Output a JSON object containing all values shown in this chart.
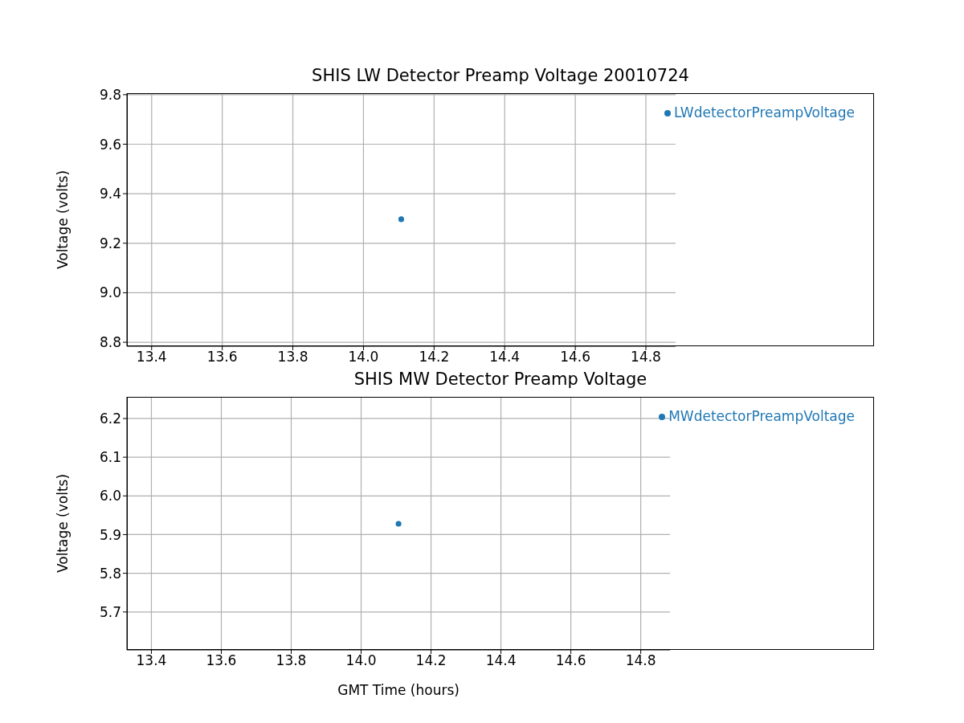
{
  "chart_data": [
    {
      "type": "scatter",
      "title": "SHIS LW Detector Preamp Voltage 20010724",
      "ylabel": "Voltage (volts)",
      "x": [
        14.107
      ],
      "series": [
        {
          "name": "LWdetectorPreampVoltage",
          "color": "#1f77b4",
          "values": [
            9.297
          ]
        }
      ],
      "xlim": [
        13.33,
        14.884
      ],
      "xticks": [
        13.4,
        13.6,
        13.8,
        {
          "value": 14,
          "label": "14.0"
        },
        14.2,
        14.4,
        14.6,
        14.8
      ],
      "ylim": [
        8.784,
        9.806
      ],
      "yticks": [
        8.8,
        {
          "value": 9,
          "label": "9.0"
        },
        9.2,
        9.4,
        9.6,
        9.8
      ],
      "grid": true,
      "legend": "top right",
      "marker": "circle"
    },
    {
      "type": "scatter",
      "title": "SHIS MW Detector Preamp Voltage",
      "xlabel": "GMT Time (hours)",
      "ylabel": "Voltage (volts)",
      "x": [
        14.107
      ],
      "series": [
        {
          "name": "MWdetectorPreampVoltage",
          "color": "#1f77b4",
          "values": [
            5.928
          ]
        }
      ],
      "xlim": [
        13.33,
        14.884
      ],
      "xticks": [
        13.4,
        13.6,
        13.8,
        {
          "value": 14,
          "label": "14.0"
        },
        14.2,
        14.4,
        14.6,
        14.8
      ],
      "ylim": [
        5.602,
        6.256
      ],
      "yticks": [
        5.7,
        5.8,
        5.9,
        {
          "value": 6,
          "label": "6.0"
        },
        6.1,
        6.2
      ],
      "grid": true,
      "legend": "top right",
      "marker": "circle"
    }
  ]
}
